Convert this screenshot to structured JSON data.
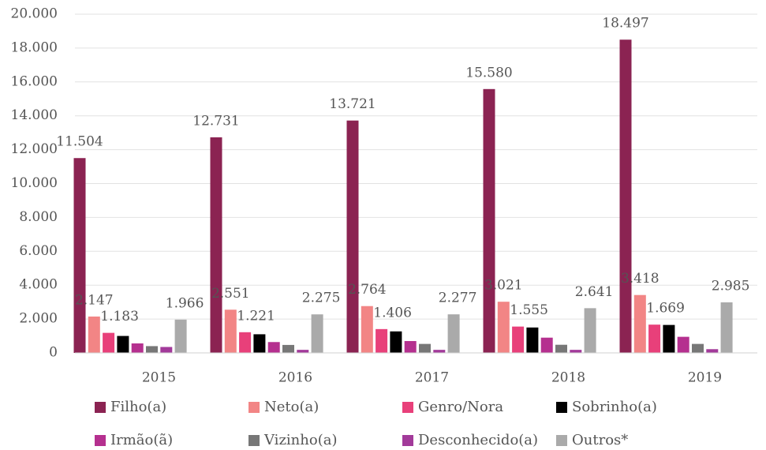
{
  "chart_data": {
    "type": "bar",
    "categories": [
      "2015",
      "2016",
      "2017",
      "2018",
      "2019"
    ],
    "ylim": [
      0,
      20000
    ],
    "yticks": [
      0,
      {
        "value": 2000,
        "label": "2.000"
      },
      {
        "value": 4000,
        "label": "4.000"
      },
      {
        "value": 6000,
        "label": "6.000"
      },
      {
        "value": 8000,
        "label": "8.000"
      },
      {
        "value": 10000,
        "label": "10.000"
      },
      {
        "value": 12000,
        "label": "12.000"
      },
      {
        "value": 14000,
        "label": "14.000"
      },
      {
        "value": 16000,
        "label": "16.000"
      },
      {
        "value": 18000,
        "label": "18.000"
      },
      {
        "value": 20000,
        "label": "20.000"
      }
    ],
    "grid": true,
    "series": [
      {
        "name": "Filho(a)",
        "color": "#8b2352",
        "values": [
          11504,
          12731,
          13721,
          15580,
          18497
        ],
        "value_labels": [
          "11.504",
          "12.731",
          "13.721",
          "15.580",
          "18.497"
        ]
      },
      {
        "name": "Neto(a)",
        "color": "#f28585",
        "values": [
          2147,
          2551,
          2764,
          3021,
          3418
        ],
        "value_labels": [
          "2.147",
          "2.551",
          "2.764",
          "3.021",
          "3.418"
        ]
      },
      {
        "name": "Genro/Nora",
        "color": "#e8407a",
        "values": [
          1183,
          1221,
          1406,
          1555,
          1669
        ],
        "value_labels": [
          "1.183",
          "1.221",
          "1.406",
          "1.555",
          "1.669"
        ]
      },
      {
        "name": "Sobrinho(a)",
        "color": "#000000",
        "values": [
          1000,
          1100,
          1270,
          1500,
          1650
        ]
      },
      {
        "name": "Irmão(ã)",
        "color": "#b5308f",
        "values": [
          560,
          640,
          700,
          900,
          950
        ]
      },
      {
        "name": "Vizinho(a)",
        "color": "#777777",
        "values": [
          400,
          470,
          530,
          480,
          530
        ]
      },
      {
        "name": "Desconhecido(a)",
        "color": "#a23a9a",
        "values": [
          350,
          180,
          180,
          180,
          220
        ]
      },
      {
        "name": "Outros*",
        "color": "#aaaaaa",
        "values": [
          1966,
          2275,
          2277,
          2641,
          2985
        ],
        "value_labels": [
          "1.966",
          "2.275",
          "2.277",
          "2.641",
          "2.985"
        ]
      }
    ]
  }
}
